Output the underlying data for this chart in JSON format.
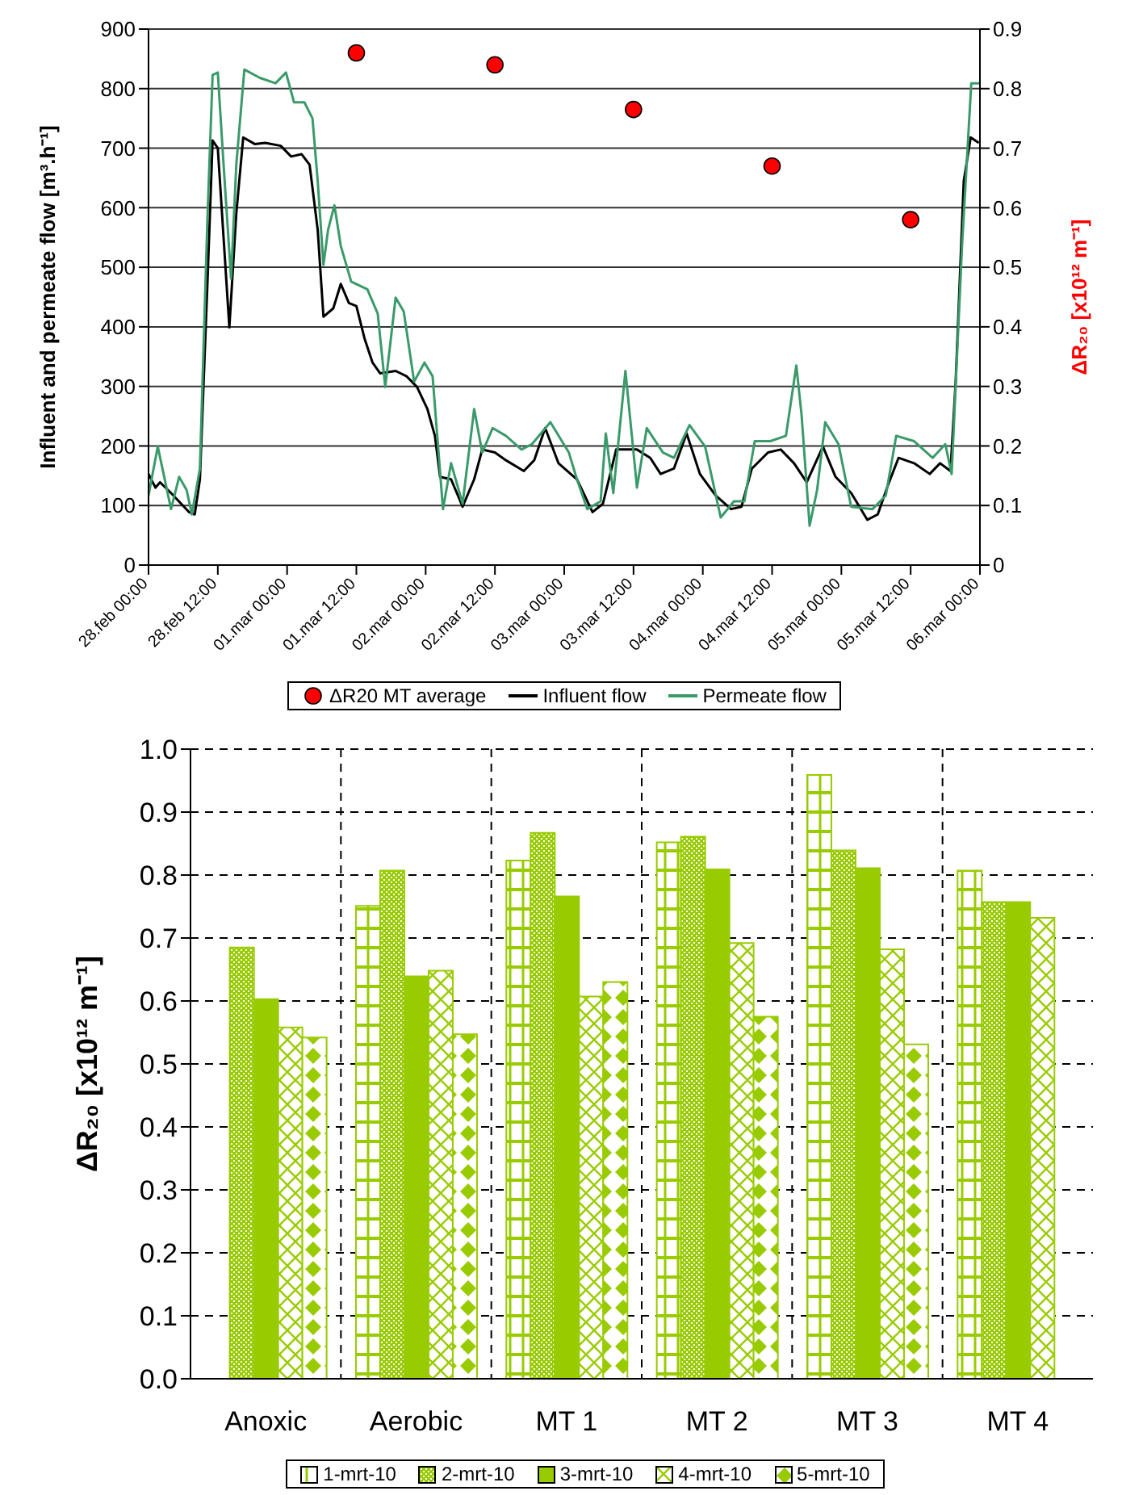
{
  "chart_data": [
    {
      "type": "line",
      "ylabel": "Influent and permeate flow [m³.h⁻¹]",
      "y2label": "ΔR₂₀ [x10¹² m⁻¹]",
      "xlim": [
        "--02-28T00:00",
        "--03-06T00:00"
      ],
      "xticks": [
        {
          "value": "--02-28T00:00",
          "label": "28.feb 00:00"
        },
        {
          "value": "--02-28T12:00",
          "label": "28.feb 12:00"
        },
        {
          "value": "--03-01T00:00",
          "label": "01.mar 00:00"
        },
        {
          "value": "--03-01T12:00",
          "label": "01.mar 12:00"
        },
        {
          "value": "--03-02T00:00",
          "label": "02.mar 00:00"
        },
        {
          "value": "--03-02T12:00",
          "label": "02.mar 12:00"
        },
        {
          "value": "--03-03T00:00",
          "label": "03.mar 00:00"
        },
        {
          "value": "--03-03T12:00",
          "label": "03.mar 12:00"
        },
        {
          "value": "--03-04T00:00",
          "label": "04.mar 00:00"
        },
        {
          "value": "--03-04T12:00",
          "label": "04.mar 12:00"
        },
        {
          "value": "--03-05T00:00",
          "label": "05.mar 00:00"
        },
        {
          "value": "--03-05T12:00",
          "label": "05.mar 12:00"
        },
        {
          "value": "--03-06T00:00",
          "label": "06.mar 00:00"
        }
      ],
      "ylim": [
        0,
        900
      ],
      "yticks": [
        0,
        100,
        200,
        300,
        400,
        500,
        600,
        700,
        800,
        900
      ],
      "y2lim": [
        0,
        0.9
      ],
      "y2ticks": [
        0,
        0.1,
        0.2,
        0.3,
        0.4,
        0.5,
        0.6,
        0.7,
        0.8,
        0.9
      ],
      "grid": "y",
      "legend": "bottom",
      "series": [
        {
          "name": "ΔR20  MT average",
          "type": "scatter",
          "axis": "y2",
          "marker": "circle",
          "color": "#ff0000",
          "x": [
            "--03-01T12:00",
            "--03-02T12:00",
            "--03-03T12:00",
            "--03-04T12:00",
            "--03-05T12:00"
          ],
          "values": [
            0.86,
            0.84,
            0.765,
            0.67,
            0.58
          ]
        },
        {
          "name": "Influent flow",
          "type": "line",
          "color": "#000000",
          "x": [
            "--02-28T00:00",
            "--02-28T01:12",
            "--02-28T02:00",
            "--02-28T03:54",
            "--02-28T07:00",
            "--02-28T08:00",
            "--02-28T08:54",
            "--02-28T10:12",
            "--02-28T11:06",
            "--02-28T12:00",
            "--02-28T14:00",
            "--02-28T15:12",
            "--02-28T16:24",
            "--02-28T18:24",
            "--02-28T20:12",
            "--02-28T22:54",
            "--03-01T00:42",
            "--03-01T02:30",
            "--03-01T03:54",
            "--03-01T05:18",
            "--03-01T06:18",
            "--03-01T08:00",
            "--03-01T09:18",
            "--03-01T10:42",
            "--03-01T12:00",
            "--03-01T13:24",
            "--03-01T14:48",
            "--03-01T16:06",
            "--03-01T18:48",
            "--03-01T20:42",
            "--03-01T22:30",
            "--03-02T00:18",
            "--03-02T01:36",
            "--03-02T02:30",
            "--03-02T04:24",
            "--03-02T06:24",
            "--03-02T08:24",
            "--03-02T09:48",
            "--03-02T12:00",
            "--03-02T13:54",
            "--03-02T17:00",
            "--03-02T18:48",
            "--03-02T20:42",
            "--03-02T23:00",
            "--03-03T02:12",
            "--03-03T04:54",
            "--03-03T06:42",
            "--03-03T09:00",
            "--03-03T12:36",
            "--03-03T14:54",
            "--03-03T16:42",
            "--03-03T19:00",
            "--03-03T21:12",
            "--03-03T23:30",
            "--03-04T02:12",
            "--03-04T04:54",
            "--03-04T06:42",
            "--03-04T08:30",
            "--03-04T11:18",
            "--03-04T13:30",
            "--03-04T15:48",
            "--03-04T18:00",
            "--03-04T20:48",
            "--03-04T23:00",
            "--03-05T01:42",
            "--03-05T04:30",
            "--03-05T06:18",
            "--03-05T08:06",
            "--03-05T09:54",
            "--03-05T12:36",
            "--03-05T15:18",
            "--03-05T17:06",
            "--03-05T18:54",
            "--03-05T19:48",
            "--03-05T21:12",
            "--03-05T22:24",
            "--03-05T23:48"
          ],
          "values": [
            153,
            130,
            139,
            121,
            89,
            85,
            144,
            472,
            713,
            700,
            399,
            590,
            718,
            707,
            709,
            704,
            686,
            690,
            672,
            563,
            417,
            431,
            472,
            440,
            435,
            381,
            340,
            322,
            326,
            317,
            299,
            262,
            217,
            148,
            144,
            98,
            144,
            194,
            189,
            176,
            158,
            176,
            230,
            171,
            144,
            89,
            103,
            194,
            194,
            180,
            153,
            162,
            221,
            153,
            117,
            94,
            98,
            162,
            189,
            194,
            171,
            139,
            199,
            148,
            121,
            76,
            85,
            135,
            180,
            171,
            153,
            171,
            158,
            308,
            645,
            718,
            709
          ]
        },
        {
          "name": "Permeate flow",
          "type": "line",
          "color": "#3a9a6a",
          "x": [
            "--02-28T00:00",
            "--02-28T01:36",
            "--02-28T03:54",
            "--02-28T05:18",
            "--02-28T06:36",
            "--02-28T07:30",
            "--02-28T08:54",
            "--02-28T10:12",
            "--02-28T11:06",
            "--02-28T12:00",
            "--02-28T13:00",
            "--02-28T14:18",
            "--02-28T15:12",
            "--02-28T16:36",
            "--02-28T19:18",
            "--02-28T22:00",
            "--02-28T23:48",
            "--03-01T01:12",
            "--03-01T03:00",
            "--03-01T04:24",
            "--03-01T05:18",
            "--03-01T06:18",
            "--03-01T07:06",
            "--03-01T08:12",
            "--03-01T09:18",
            "--03-01T11:06",
            "--03-01T13:54",
            "--03-01T15:42",
            "--03-01T17:00",
            "--03-01T18:48",
            "--03-01T20:12",
            "--03-01T22:00",
            "--03-01T23:48",
            "--03-02T01:12",
            "--03-02T03:00",
            "--03-02T04:24",
            "--03-02T06:24",
            "--03-02T08:24",
            "--03-02T09:48",
            "--03-02T11:36",
            "--03-02T13:54",
            "--03-02T16:36",
            "--03-02T18:24",
            "--03-02T21:36",
            "--03-03T00:48",
            "--03-03T02:12",
            "--03-03T04:00",
            "--03-03T06:18",
            "--03-03T07:12",
            "--03-03T08:30",
            "--03-03T10:36",
            "--03-03T12:36",
            "--03-03T14:18",
            "--03-03T17:06",
            "--03-03T19:00",
            "--03-03T21:42",
            "--03-04T00:24",
            "--03-04T03:06",
            "--03-04T05:24",
            "--03-04T07:12",
            "--03-04T09:00",
            "--03-04T11:42",
            "--03-04T14:24",
            "--03-04T16:12",
            "--03-04T17:06",
            "--03-04T18:30",
            "--03-04T19:48",
            "--03-04T21:12",
            "--03-04T23:30",
            "--03-05T01:42",
            "--03-05T05:24",
            "--03-05T07:42",
            "--03-05T09:30",
            "--03-05T12:36",
            "--03-05T15:48",
            "--03-05T18:00",
            "--03-05T19:06",
            "--03-05T20:54",
            "--03-05T22:30",
            "--03-05T23:54"
          ],
          "values": [
            117,
            199,
            94,
            148,
            126,
            85,
            162,
            581,
            823,
            827,
            672,
            481,
            672,
            832,
            818,
            809,
            827,
            777,
            777,
            750,
            645,
            504,
            563,
            604,
            536,
            476,
            463,
            422,
            299,
            449,
            426,
            308,
            340,
            317,
            94,
            171,
            103,
            262,
            189,
            230,
            217,
            194,
            203,
            240,
            189,
            144,
            94,
            107,
            221,
            121,
            326,
            130,
            230,
            189,
            180,
            235,
            199,
            80,
            107,
            107,
            208,
            208,
            217,
            335,
            253,
            66,
            126,
            240,
            203,
            98,
            94,
            117,
            217,
            208,
            180,
            203,
            153,
            536,
            809,
            809
          ]
        }
      ]
    },
    {
      "type": "bar",
      "ylabel": "ΔR₂₀ [x10¹² m⁻¹]",
      "categories": [
        "Anoxic",
        "Aerobic",
        "MT 1",
        "MT 2",
        "MT 3",
        "MT 4"
      ],
      "ylim": [
        0,
        1
      ],
      "yticks": [
        {
          "value": 0,
          "label": "0.0"
        },
        0.1,
        0.2,
        0.3,
        0.4,
        0.5,
        0.6,
        0.7,
        0.8,
        0.9,
        {
          "value": 1,
          "label": "1.0"
        }
      ],
      "grid": true,
      "legend": "bottom",
      "series": [
        {
          "name": "1-mrt-10",
          "color": "#99cc00",
          "values": [
            null,
            0.751,
            0.823,
            0.852,
            0.959,
            0.807
          ]
        },
        {
          "name": "2-mrt-10",
          "color": "#99cc00",
          "values": [
            0.685,
            0.807,
            0.867,
            0.861,
            0.839,
            0.757
          ]
        },
        {
          "name": "3-mrt-10",
          "color": "#99cc00",
          "values": [
            0.603,
            0.639,
            0.766,
            0.809,
            0.811,
            0.757
          ]
        },
        {
          "name": "4-mrt-10",
          "color": "#99cc00",
          "values": [
            0.558,
            0.648,
            0.607,
            0.692,
            0.682,
            0.732
          ]
        },
        {
          "name": "5-mrt-10",
          "color": "#99cc00",
          "values": [
            0.542,
            0.547,
            0.63,
            0.575,
            0.531,
            null
          ]
        }
      ]
    }
  ]
}
